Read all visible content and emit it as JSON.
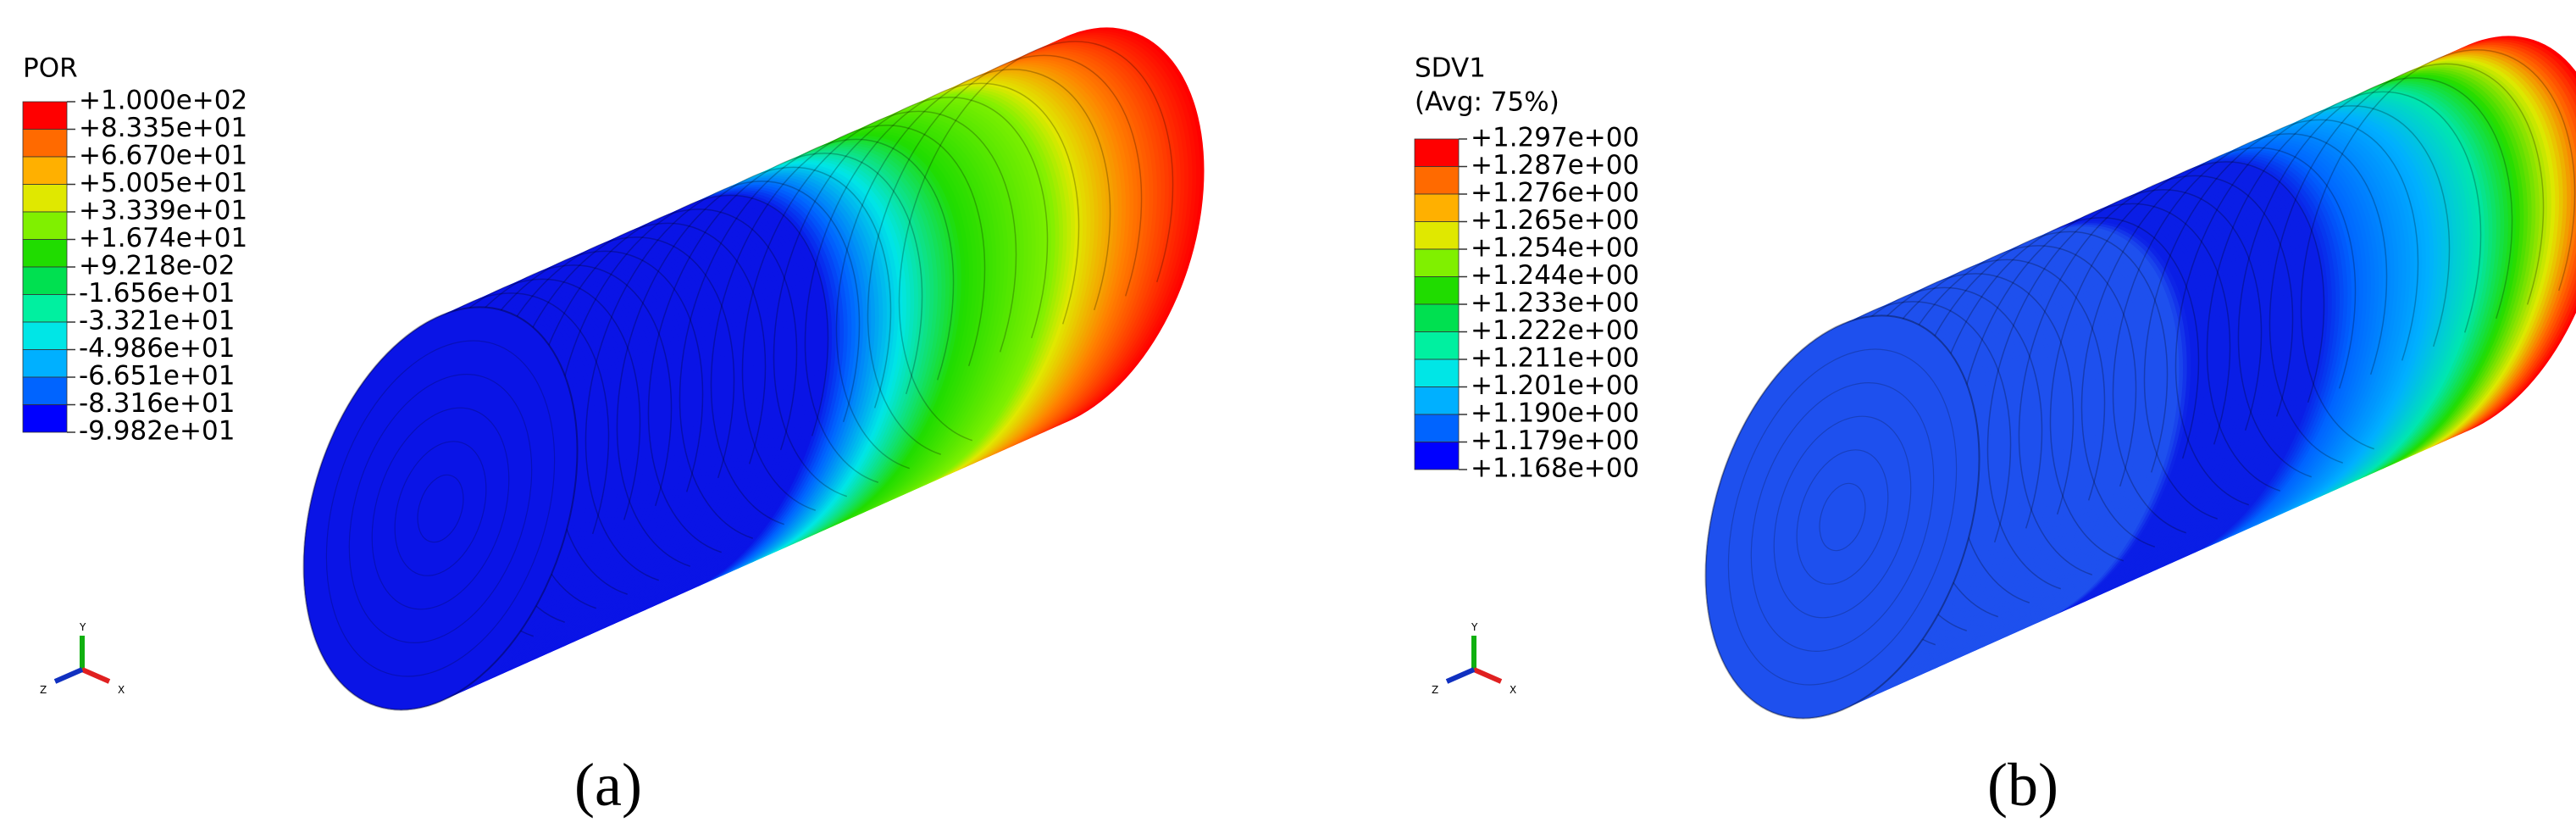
{
  "panels": [
    {
      "legend_title": "POR",
      "legend_labels": [
        "+1.000e+02",
        "+8.335e+01",
        "+6.670e+01",
        "+5.005e+01",
        "+3.339e+01",
        "+1.674e+01",
        "+9.218e-02",
        "-1.656e+01",
        "-3.321e+01",
        "-4.986e+01",
        "-6.651e+01",
        "-8.316e+01",
        "-9.982e+01"
      ],
      "triad": {
        "y": "Y",
        "z": "Z",
        "x": "X"
      },
      "label": "(a)"
    },
    {
      "legend_title": "SDV1",
      "legend_subtitle": "(Avg: 75%)",
      "legend_labels": [
        "+1.297e+00",
        "+1.287e+00",
        "+1.276e+00",
        "+1.265e+00",
        "+1.254e+00",
        "+1.244e+00",
        "+1.233e+00",
        "+1.222e+00",
        "+1.211e+00",
        "+1.201e+00",
        "+1.190e+00",
        "+1.179e+00",
        "+1.168e+00"
      ],
      "triad": {
        "y": "Y",
        "z": "Z",
        "x": "X"
      },
      "label": "(b)"
    }
  ]
}
